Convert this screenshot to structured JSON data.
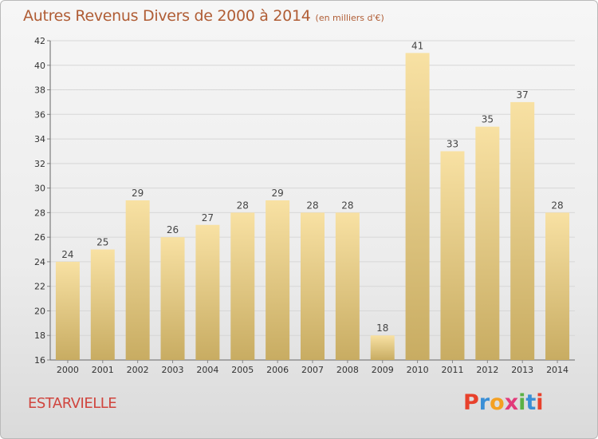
{
  "header": {
    "title": "Autres Revenus Divers de 2000 à 2014",
    "subtitle": "(en milliers d'€)"
  },
  "footer": {
    "commune": "ESTARVIELLE",
    "logo_letters": [
      "P",
      "r",
      "o",
      "x",
      "i",
      "t",
      "i"
    ],
    "logo_colors": [
      "#e8412c",
      "#3a8fd6",
      "#f4a022",
      "#e23b7a",
      "#5bb146",
      "#3a8fd6",
      "#e8412c"
    ]
  },
  "colors": {
    "bar_light": "#f8e1a3",
    "bar_dark": "#c8ac62",
    "title": "#b05d35",
    "commune": "#d0453e"
  },
  "chart_data": {
    "type": "bar",
    "categories": [
      "2000",
      "2001",
      "2002",
      "2003",
      "2004",
      "2005",
      "2006",
      "2007",
      "2008",
      "2009",
      "2010",
      "2011",
      "2012",
      "2013",
      "2014"
    ],
    "values": [
      24,
      25,
      29,
      26,
      27,
      28,
      29,
      28,
      28,
      18,
      41,
      33,
      35,
      37,
      28
    ],
    "title": "Autres Revenus Divers de 2000 à 2014",
    "subtitle": "(en milliers d'€)",
    "xlabel": "",
    "ylabel": "",
    "ylim": [
      16,
      42
    ],
    "yticks": [
      16,
      18,
      20,
      22,
      24,
      26,
      28,
      30,
      32,
      34,
      36,
      38,
      40,
      42
    ],
    "grid": true,
    "data_labels": true
  }
}
